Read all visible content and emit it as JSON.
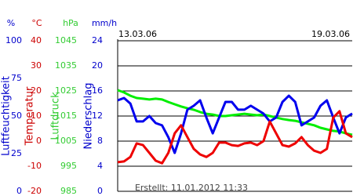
{
  "chart_data": {
    "type": "line",
    "date_labels": [
      "13.03.06",
      "19.03.06"
    ],
    "footer": "Erstellt: 11.01.2012 11:33",
    "axes": [
      {
        "unit": "%",
        "title": "Luftfeuchtigkeit",
        "color": "#0000cc",
        "ylim": [
          0,
          100
        ],
        "yticks": [
          0,
          25,
          50,
          75,
          100
        ]
      },
      {
        "unit": "°C",
        "title": "Temperatur",
        "color": "#cc0000",
        "ylim": [
          -20,
          40
        ],
        "yticks": [
          -20,
          -10,
          0,
          10,
          20,
          30,
          40
        ]
      },
      {
        "unit": "hPa",
        "title": "Luftdruck",
        "color": "#33cc33",
        "ylim": [
          985,
          1045
        ],
        "yticks": [
          985,
          995,
          1005,
          1015,
          1025,
          1035,
          1045
        ]
      },
      {
        "unit": "mm/h",
        "title": "Niederschlag",
        "color": "#0000cc",
        "ylim": [
          0,
          24
        ],
        "yticks": [
          0,
          4,
          8,
          12,
          16,
          20,
          24
        ]
      }
    ],
    "grid": true,
    "series": [
      {
        "name": "Luftfeuchtigkeit",
        "axis": 0,
        "color": "#0000ee",
        "values": [
          60.4,
          62,
          58.3,
          46.4,
          46.4,
          50,
          45.3,
          43.8,
          35.9,
          25.5,
          38.5,
          54.2,
          56.8,
          60.4,
          49,
          38.5,
          49,
          59.4,
          59.4,
          54.2,
          54.2,
          56.8,
          54.2,
          51.6,
          46.4,
          49,
          59.4,
          63.5,
          59.4,
          43.8,
          46.4,
          49,
          56.8,
          60.4,
          49,
          38.5,
          49,
          51.6
        ]
      },
      {
        "name": "Temperatur",
        "axis": 1,
        "color": "#ee0000",
        "values": [
          -8.4,
          -8.1,
          -6.3,
          -0.9,
          -1.6,
          -4.7,
          -7.8,
          -8.8,
          -4.7,
          3.1,
          6.3,
          1.6,
          -3.1,
          -5.3,
          -6.3,
          -4.7,
          -0.6,
          -0.6,
          -1.6,
          -1.9,
          -0.9,
          -0.6,
          -1.6,
          0,
          7.8,
          3.1,
          -1.6,
          -2.2,
          -0.9,
          1.6,
          -1.6,
          -3.8,
          -4.7,
          -3.1,
          9.4,
          11.9,
          3.1,
          1.6
        ]
      },
      {
        "name": "Luftdruck",
        "axis": 2,
        "color": "#00ee00",
        "values": [
          1025.3,
          1024.4,
          1023.1,
          1022.2,
          1021.9,
          1021.6,
          1021.9,
          1021.6,
          1020.6,
          1019.7,
          1018.8,
          1018.1,
          1017.5,
          1016.6,
          1015.9,
          1015.6,
          1015,
          1015,
          1015.3,
          1015.6,
          1015.9,
          1015.6,
          1015.3,
          1015.6,
          1015,
          1014.4,
          1013.8,
          1013.4,
          1013.1,
          1012.5,
          1011.9,
          1011.3,
          1010.3,
          1009.7,
          1009.1,
          1008.8,
          1008.1,
          1007.5
        ]
      }
    ]
  }
}
